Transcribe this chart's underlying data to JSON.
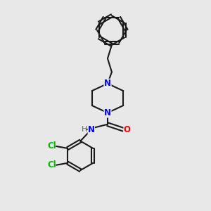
{
  "bg_color": "#e8e8e8",
  "bond_color": "#1a1a1a",
  "N_color": "#0000ff",
  "O_color": "#ff0000",
  "Cl_color": "#00bb00",
  "bond_width": 1.5,
  "font_size": 8.5,
  "xlim": [
    0,
    10
  ],
  "ylim": [
    0,
    10
  ]
}
